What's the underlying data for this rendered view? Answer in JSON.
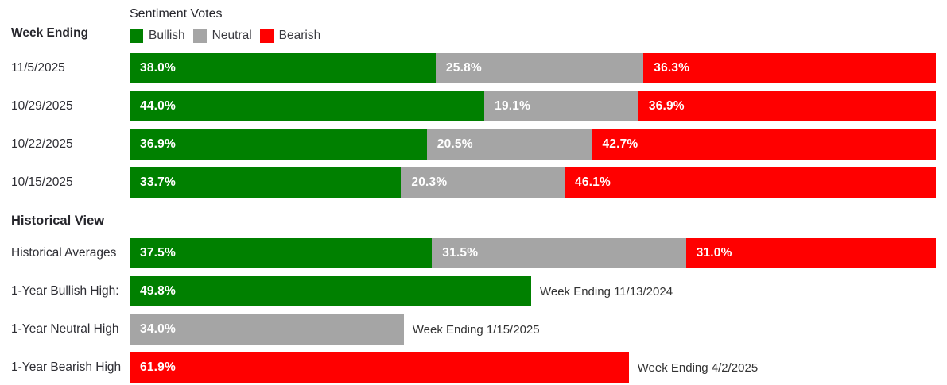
{
  "header": {
    "week_ending_label": "Week Ending",
    "legend_title": "Sentiment Votes",
    "legend": [
      {
        "name": "bullish",
        "label": "Bullish"
      },
      {
        "name": "neutral",
        "label": "Neutral"
      },
      {
        "name": "bearish",
        "label": "Bearish"
      }
    ]
  },
  "colors": {
    "bullish": "#008000",
    "neutral": "#a5a5a5",
    "bearish": "#ff0000"
  },
  "weekly_rows": [
    {
      "label": "11/5/2025",
      "segments": [
        {
          "key": "bullish",
          "value": 38.0,
          "text": "38.0%"
        },
        {
          "key": "neutral",
          "value": 25.8,
          "text": "25.8%"
        },
        {
          "key": "bearish",
          "value": 36.3,
          "text": "36.3%"
        }
      ]
    },
    {
      "label": "10/29/2025",
      "segments": [
        {
          "key": "bullish",
          "value": 44.0,
          "text": "44.0%"
        },
        {
          "key": "neutral",
          "value": 19.1,
          "text": "19.1%"
        },
        {
          "key": "bearish",
          "value": 36.9,
          "text": "36.9%"
        }
      ]
    },
    {
      "label": "10/22/2025",
      "segments": [
        {
          "key": "bullish",
          "value": 36.9,
          "text": "36.9%"
        },
        {
          "key": "neutral",
          "value": 20.5,
          "text": "20.5%"
        },
        {
          "key": "bearish",
          "value": 42.7,
          "text": "42.7%"
        }
      ]
    },
    {
      "label": "10/15/2025",
      "segments": [
        {
          "key": "bullish",
          "value": 33.7,
          "text": "33.7%"
        },
        {
          "key": "neutral",
          "value": 20.3,
          "text": "20.3%"
        },
        {
          "key": "bearish",
          "value": 46.1,
          "text": "46.1%"
        }
      ]
    }
  ],
  "historical": {
    "section_title": "Historical View",
    "rows": [
      {
        "label": "Historical Averages",
        "segments": [
          {
            "key": "bullish",
            "value": 37.5,
            "text": "37.5%"
          },
          {
            "key": "neutral",
            "value": 31.5,
            "text": "31.5%"
          },
          {
            "key": "bearish",
            "value": 31.0,
            "text": "31.0%"
          }
        ]
      },
      {
        "label": "1-Year Bullish High:",
        "segments": [
          {
            "key": "bullish",
            "value": 49.8,
            "text": "49.8%"
          }
        ],
        "annotation": "Week Ending 11/13/2024"
      },
      {
        "label": "1-Year Neutral High",
        "segments": [
          {
            "key": "neutral",
            "value": 34.0,
            "text": "34.0%"
          }
        ],
        "annotation": "Week Ending 1/15/2025"
      },
      {
        "label": "1-Year Bearish High",
        "segments": [
          {
            "key": "bearish",
            "value": 61.9,
            "text": "61.9%"
          }
        ],
        "annotation": "Week Ending 4/2/2025"
      }
    ]
  },
  "chart_data": {
    "type": "bar",
    "orientation": "horizontal",
    "stacked": true,
    "title": "Sentiment Votes",
    "categories": [
      "11/5/2025",
      "10/29/2025",
      "10/22/2025",
      "10/15/2025",
      "Historical Averages"
    ],
    "series": [
      {
        "name": "Bullish",
        "color": "#008000",
        "values": [
          38.0,
          44.0,
          36.9,
          33.7,
          37.5
        ]
      },
      {
        "name": "Neutral",
        "color": "#a5a5a5",
        "values": [
          25.8,
          19.1,
          20.5,
          20.3,
          31.5
        ]
      },
      {
        "name": "Bearish",
        "color": "#ff0000",
        "values": [
          36.3,
          36.9,
          42.7,
          46.1,
          31.0
        ]
      }
    ],
    "historical_highs": [
      {
        "label": "1-Year Bullish High:",
        "series": "Bullish",
        "value": 49.8,
        "week_ending": "Week Ending 11/13/2024"
      },
      {
        "label": "1-Year Neutral High",
        "series": "Neutral",
        "value": 34.0,
        "week_ending": "Week Ending 1/15/2025"
      },
      {
        "label": "1-Year Bearish High",
        "series": "Bearish",
        "value": 61.9,
        "week_ending": "Week Ending 4/2/2025"
      }
    ],
    "xlim": [
      0,
      100
    ],
    "legend_position": "top",
    "grid": false,
    "value_labels": "inside-left, white bold"
  }
}
